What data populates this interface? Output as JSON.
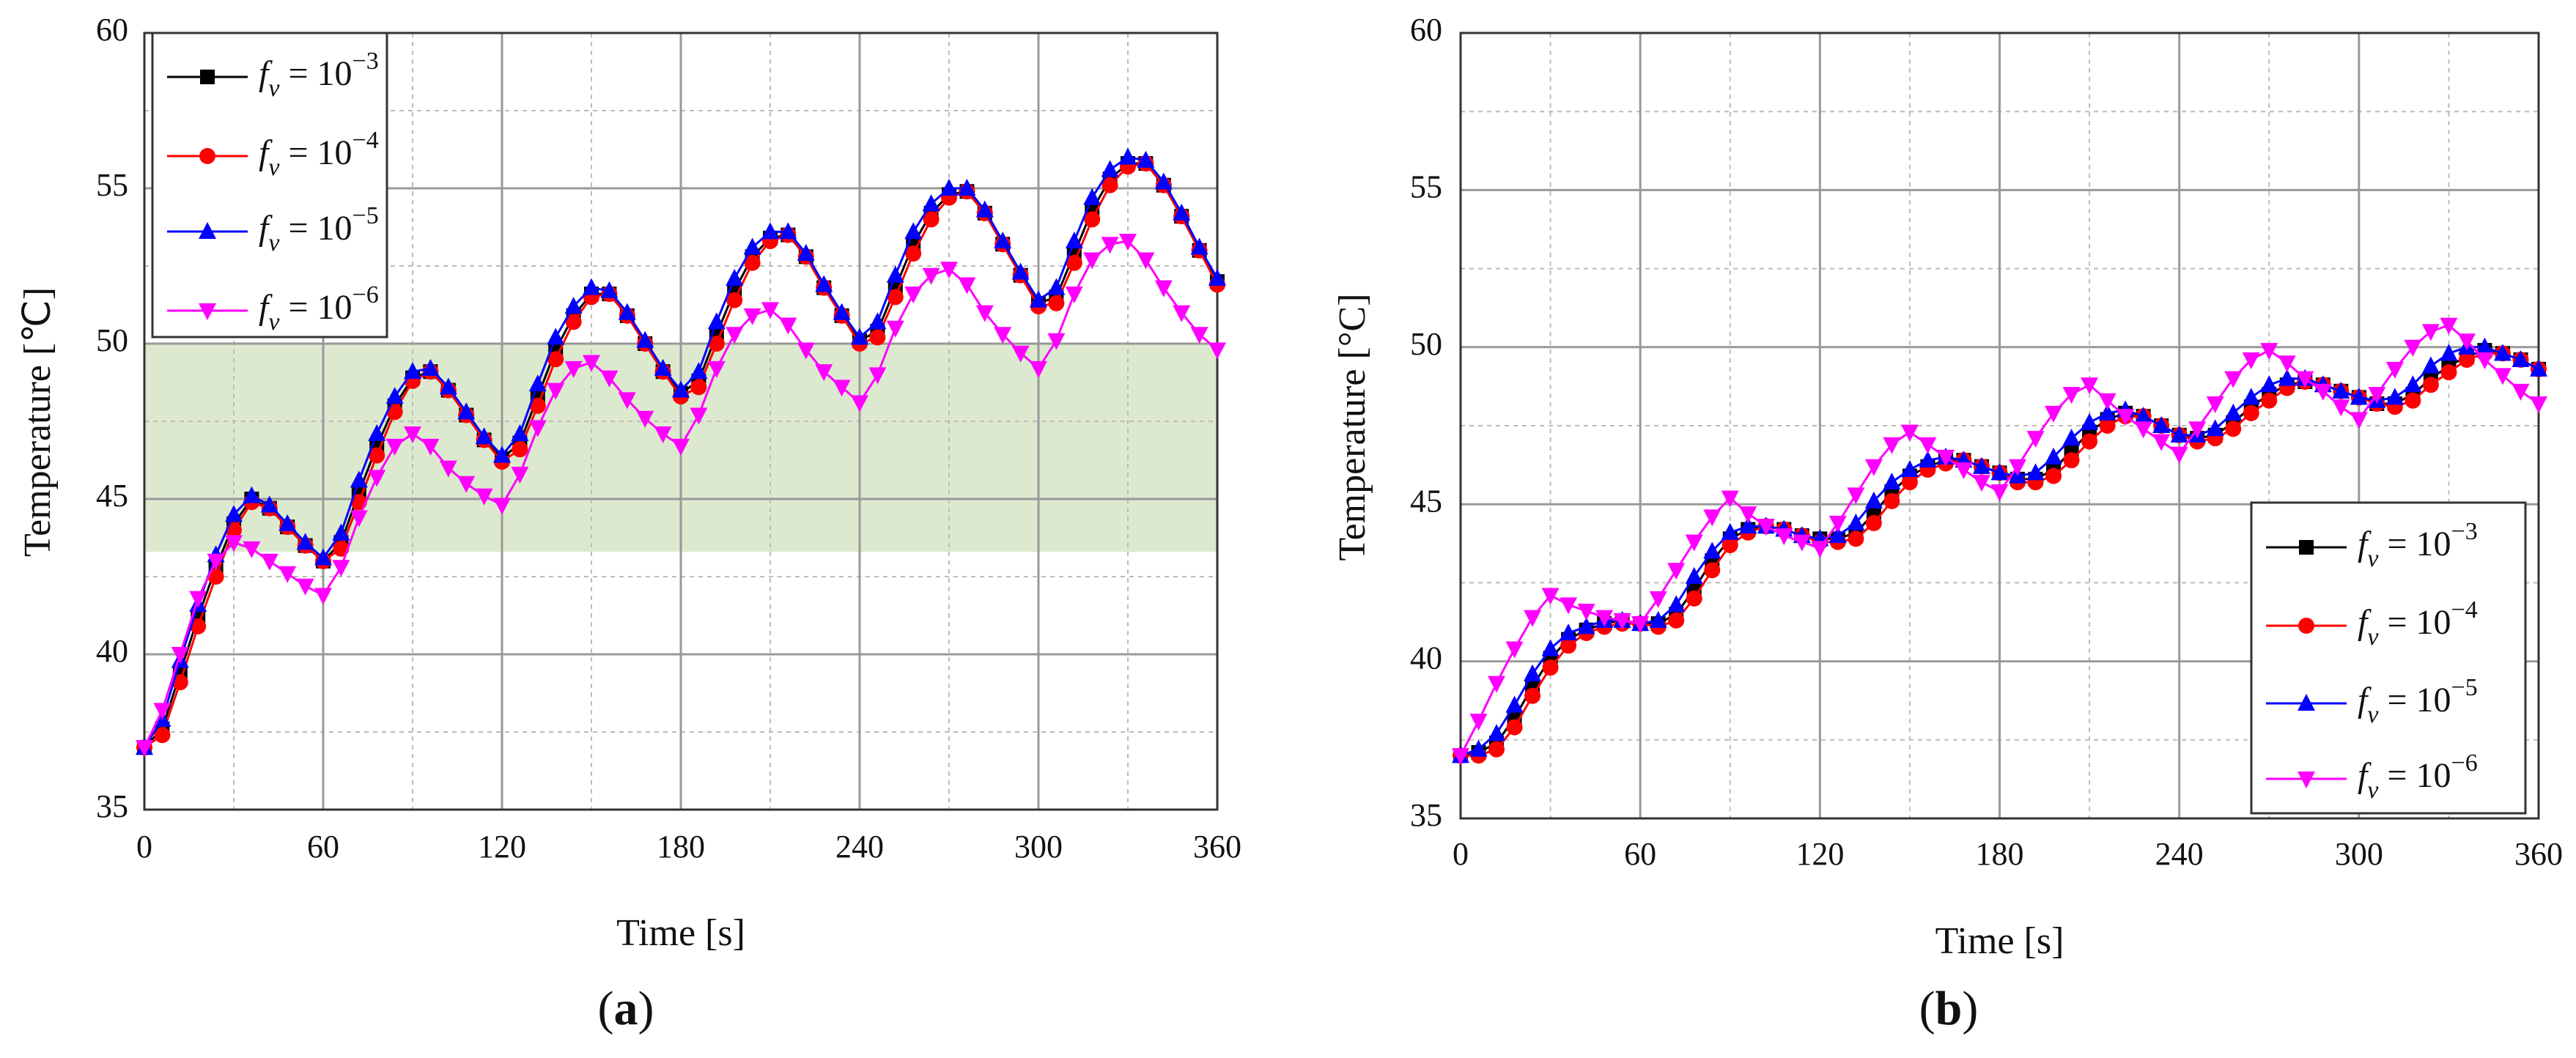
{
  "chart_data": [
    {
      "type": "line",
      "caption": "(a)",
      "xlabel": "Time [s]",
      "ylabel": "Temperature [℃]",
      "xlim": [
        0,
        360
      ],
      "ylim": [
        35,
        60
      ],
      "xticks": [
        0,
        60,
        120,
        180,
        240,
        300,
        360
      ],
      "yticks": [
        35,
        40,
        45,
        50,
        55,
        60
      ],
      "grid": true,
      "minor_grid": true,
      "legend": "upper left",
      "band": [
        43.3,
        50
      ],
      "band_color": "#dce9cf",
      "x": [
        0,
        6,
        12,
        18,
        24,
        30,
        36,
        42,
        48,
        54,
        60,
        66,
        72,
        78,
        84,
        90,
        96,
        102,
        108,
        114,
        120,
        126,
        132,
        138,
        144,
        150,
        156,
        162,
        168,
        174,
        180,
        186,
        192,
        198,
        204,
        210,
        216,
        222,
        228,
        234,
        240,
        246,
        252,
        258,
        264,
        270,
        276,
        282,
        288,
        294,
        300,
        306,
        312,
        318,
        324,
        330,
        336,
        342,
        348,
        354,
        360
      ],
      "series": [
        {
          "name": "fv = 10−3",
          "color": "#000000",
          "marker": "square",
          "values": [
            37.0,
            37.6,
            39.4,
            41.2,
            42.8,
            44.2,
            45.0,
            44.7,
            44.1,
            43.5,
            43.0,
            43.6,
            45.2,
            46.7,
            48.0,
            48.9,
            49.1,
            48.5,
            47.7,
            46.9,
            46.3,
            46.8,
            48.3,
            49.8,
            50.9,
            51.6,
            51.6,
            50.9,
            50.0,
            49.1,
            48.4,
            48.8,
            50.3,
            51.7,
            52.8,
            53.4,
            53.5,
            52.8,
            51.8,
            50.9,
            50.1,
            50.4,
            51.8,
            53.2,
            54.2,
            54.8,
            54.9,
            54.2,
            53.2,
            52.2,
            51.3,
            51.5,
            52.9,
            54.3,
            55.3,
            55.8,
            55.8,
            55.1,
            54.1,
            53.0,
            52.0
          ]
        },
        {
          "name": "fv = 10−4",
          "color": "#ff0000",
          "marker": "circle",
          "values": [
            37.0,
            37.4,
            39.1,
            40.9,
            42.5,
            44.0,
            44.9,
            44.7,
            44.1,
            43.5,
            43.0,
            43.4,
            44.9,
            46.4,
            47.8,
            48.8,
            49.1,
            48.5,
            47.7,
            46.9,
            46.2,
            46.6,
            48.0,
            49.5,
            50.7,
            51.5,
            51.6,
            50.9,
            50.0,
            49.1,
            48.3,
            48.6,
            50.0,
            51.4,
            52.6,
            53.3,
            53.5,
            52.8,
            51.8,
            50.9,
            50.0,
            50.2,
            51.5,
            52.9,
            54.0,
            54.7,
            54.9,
            54.2,
            53.2,
            52.2,
            51.2,
            51.3,
            52.6,
            54.0,
            55.1,
            55.7,
            55.8,
            55.1,
            54.1,
            53.0,
            51.9
          ]
        },
        {
          "name": "fv = 10−5",
          "color": "#0000ff",
          "marker": "triangle-up",
          "values": [
            37.0,
            37.9,
            39.8,
            41.6,
            43.2,
            44.5,
            45.1,
            44.8,
            44.2,
            43.6,
            43.1,
            43.9,
            45.6,
            47.1,
            48.3,
            49.1,
            49.2,
            48.6,
            47.8,
            47.0,
            46.4,
            47.1,
            48.7,
            50.2,
            51.2,
            51.8,
            51.7,
            51.0,
            50.1,
            49.2,
            48.5,
            49.1,
            50.7,
            52.1,
            53.1,
            53.6,
            53.6,
            52.9,
            51.9,
            51.0,
            50.2,
            50.7,
            52.2,
            53.6,
            54.5,
            55.0,
            55.0,
            54.3,
            53.3,
            52.3,
            51.4,
            51.8,
            53.3,
            54.7,
            55.6,
            56.0,
            55.9,
            55.2,
            54.2,
            53.1,
            52.1
          ]
        },
        {
          "name": "fv = 10−6",
          "color": "#ff00ff",
          "marker": "triangle-down",
          "values": [
            37.0,
            38.2,
            40.0,
            41.8,
            43.0,
            43.6,
            43.4,
            43.0,
            42.6,
            42.2,
            41.9,
            42.8,
            44.4,
            45.7,
            46.7,
            47.1,
            46.7,
            46.0,
            45.5,
            45.1,
            44.8,
            45.8,
            47.3,
            48.5,
            49.2,
            49.4,
            48.9,
            48.2,
            47.6,
            47.1,
            46.7,
            47.7,
            49.2,
            50.3,
            50.9,
            51.1,
            50.6,
            49.8,
            49.1,
            48.6,
            48.1,
            49.0,
            50.5,
            51.6,
            52.2,
            52.4,
            51.9,
            51.0,
            50.3,
            49.7,
            49.2,
            50.1,
            51.6,
            52.7,
            53.2,
            53.3,
            52.7,
            51.8,
            51.0,
            50.3,
            49.8
          ]
        }
      ]
    },
    {
      "type": "line",
      "caption": "(b)",
      "xlabel": "Time [s]",
      "ylabel": "Temperature [°C]",
      "xlim": [
        0,
        360
      ],
      "ylim": [
        35,
        60
      ],
      "xticks": [
        0,
        60,
        120,
        180,
        240,
        300,
        360
      ],
      "yticks": [
        35,
        40,
        45,
        50,
        55,
        60
      ],
      "grid": true,
      "minor_grid": true,
      "legend": "lower right",
      "x": [
        0,
        6,
        12,
        18,
        24,
        30,
        36,
        42,
        48,
        54,
        60,
        66,
        72,
        78,
        84,
        90,
        96,
        102,
        108,
        114,
        120,
        126,
        132,
        138,
        144,
        150,
        156,
        162,
        168,
        174,
        180,
        186,
        192,
        198,
        204,
        210,
        216,
        222,
        228,
        234,
        240,
        246,
        252,
        258,
        264,
        270,
        276,
        282,
        288,
        294,
        300,
        306,
        312,
        318,
        324,
        330,
        336,
        342,
        348,
        354,
        360
      ],
      "series": [
        {
          "name": "fv = 10−3",
          "color": "#000000",
          "marker": "square",
          "values": [
            37.0,
            37.1,
            37.4,
            38.2,
            39.2,
            40.1,
            40.7,
            41.0,
            41.2,
            41.3,
            41.2,
            41.2,
            41.5,
            42.3,
            43.2,
            43.9,
            44.2,
            44.3,
            44.2,
            44.0,
            43.9,
            43.9,
            44.1,
            44.7,
            45.4,
            45.9,
            46.2,
            46.4,
            46.4,
            46.2,
            46.0,
            45.8,
            45.8,
            46.1,
            46.7,
            47.3,
            47.7,
            47.9,
            47.8,
            47.5,
            47.2,
            47.1,
            47.2,
            47.6,
            48.1,
            48.5,
            48.8,
            48.9,
            48.8,
            48.6,
            48.4,
            48.2,
            48.2,
            48.5,
            49.0,
            49.4,
            49.7,
            49.9,
            49.8,
            49.6,
            49.3
          ]
        },
        {
          "name": "fv = 10−4",
          "color": "#ff0000",
          "marker": "circle",
          "values": [
            37.0,
            37.0,
            37.2,
            37.9,
            38.9,
            39.8,
            40.5,
            40.9,
            41.1,
            41.2,
            41.2,
            41.1,
            41.3,
            42.0,
            42.9,
            43.7,
            44.1,
            44.3,
            44.2,
            44.0,
            43.8,
            43.8,
            43.9,
            44.4,
            45.1,
            45.7,
            46.1,
            46.3,
            46.4,
            46.2,
            46.0,
            45.7,
            45.7,
            45.9,
            46.4,
            47.0,
            47.5,
            47.8,
            47.8,
            47.5,
            47.2,
            47.0,
            47.1,
            47.4,
            47.9,
            48.3,
            48.7,
            48.9,
            48.8,
            48.6,
            48.4,
            48.2,
            48.1,
            48.3,
            48.8,
            49.2,
            49.6,
            49.8,
            49.8,
            49.6,
            49.3
          ]
        },
        {
          "name": "fv = 10−5",
          "color": "#0000ff",
          "marker": "triangle-up",
          "values": [
            37.0,
            37.2,
            37.7,
            38.6,
            39.6,
            40.4,
            40.9,
            41.1,
            41.3,
            41.3,
            41.2,
            41.3,
            41.8,
            42.7,
            43.5,
            44.1,
            44.3,
            44.3,
            44.2,
            44.0,
            43.9,
            44.0,
            44.4,
            45.1,
            45.7,
            46.1,
            46.4,
            46.5,
            46.4,
            46.2,
            46.0,
            45.9,
            46.0,
            46.5,
            47.1,
            47.6,
            47.9,
            48.0,
            47.8,
            47.5,
            47.2,
            47.2,
            47.4,
            47.9,
            48.4,
            48.8,
            49.0,
            49.0,
            48.8,
            48.6,
            48.4,
            48.3,
            48.4,
            48.8,
            49.4,
            49.8,
            50.0,
            50.0,
            49.8,
            49.6,
            49.3
          ]
        },
        {
          "name": "fv = 10−6",
          "color": "#ff00ff",
          "marker": "triangle-down",
          "values": [
            37.0,
            38.1,
            39.3,
            40.4,
            41.4,
            42.1,
            41.8,
            41.6,
            41.4,
            41.3,
            41.2,
            42.0,
            42.9,
            43.8,
            44.6,
            45.2,
            44.7,
            44.3,
            44.0,
            43.8,
            43.6,
            44.4,
            45.3,
            46.2,
            46.9,
            47.3,
            46.9,
            46.5,
            46.1,
            45.7,
            45.4,
            46.2,
            47.1,
            47.9,
            48.5,
            48.8,
            48.3,
            47.8,
            47.4,
            47.0,
            46.6,
            47.4,
            48.2,
            49.0,
            49.6,
            49.9,
            49.5,
            49.0,
            48.6,
            48.1,
            47.7,
            48.5,
            49.3,
            50.0,
            50.5,
            50.7,
            50.2,
            49.6,
            49.1,
            48.6,
            48.2
          ]
        }
      ]
    }
  ]
}
